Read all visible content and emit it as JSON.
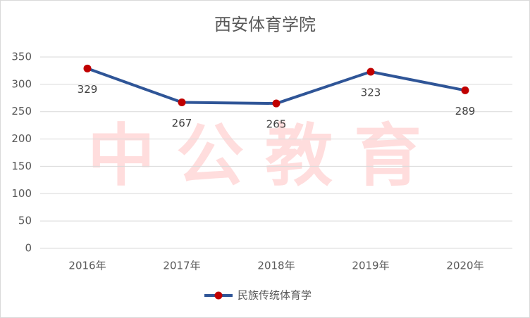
{
  "chart_data": {
    "type": "line",
    "title": "西安体育学院",
    "watermark": "中公教育",
    "categories": [
      "2016年",
      "2017年",
      "2018年",
      "2019年",
      "2020年"
    ],
    "series": [
      {
        "name": "民族传统体育学",
        "color": "#2f5597",
        "marker_color": "#c00000",
        "values": [
          329,
          267,
          265,
          323,
          289
        ]
      }
    ],
    "ylim": [
      0,
      350
    ],
    "yticks": [
      0,
      50,
      100,
      150,
      200,
      250,
      300,
      350
    ],
    "grid": true,
    "legend": "bottom"
  }
}
